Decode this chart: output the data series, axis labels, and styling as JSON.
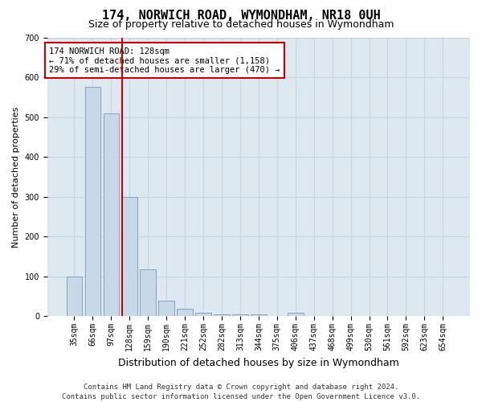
{
  "title": "174, NORWICH ROAD, WYMONDHAM, NR18 0UH",
  "subtitle": "Size of property relative to detached houses in Wymondham",
  "xlabel": "Distribution of detached houses by size in Wymondham",
  "ylabel": "Number of detached properties",
  "categories": [
    "35sqm",
    "66sqm",
    "97sqm",
    "128sqm",
    "159sqm",
    "190sqm",
    "221sqm",
    "252sqm",
    "282sqm",
    "313sqm",
    "344sqm",
    "375sqm",
    "406sqm",
    "437sqm",
    "468sqm",
    "499sqm",
    "530sqm",
    "561sqm",
    "592sqm",
    "623sqm",
    "654sqm"
  ],
  "values": [
    100,
    575,
    510,
    300,
    118,
    38,
    18,
    8,
    5,
    5,
    5,
    0,
    8,
    0,
    0,
    0,
    0,
    0,
    0,
    0,
    0
  ],
  "bar_color": "#c8d8e8",
  "bar_edge_color": "#7799bb",
  "highlight_index": 3,
  "highlight_line_color": "#cc0000",
  "annotation_text": "174 NORWICH ROAD: 128sqm\n← 71% of detached houses are smaller (1,158)\n29% of semi-detached houses are larger (470) →",
  "annotation_box_color": "#ffffff",
  "annotation_box_edge": "#cc0000",
  "ylim": [
    0,
    700
  ],
  "yticks": [
    0,
    100,
    200,
    300,
    400,
    500,
    600,
    700
  ],
  "grid_color": "#c5d5e5",
  "background_color": "#dde8f0",
  "footer_line1": "Contains HM Land Registry data © Crown copyright and database right 2024.",
  "footer_line2": "Contains public sector information licensed under the Open Government Licence v3.0.",
  "title_fontsize": 11,
  "subtitle_fontsize": 9,
  "xlabel_fontsize": 9,
  "ylabel_fontsize": 8,
  "tick_fontsize": 7,
  "annotation_fontsize": 7.5,
  "footer_fontsize": 6.5
}
